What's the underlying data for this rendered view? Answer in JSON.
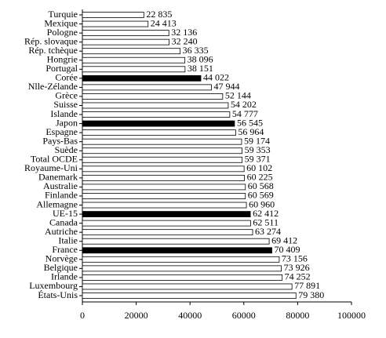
{
  "chart_data": {
    "type": "barh",
    "categories": [
      "Turquie",
      "Mexique",
      "Pologne",
      "Rép. slovaque",
      "Rép. tchèque",
      "Hongrie",
      "Portugal",
      "Corée",
      "Nlle-Zélande",
      "Grèce",
      "Suisse",
      "Islande",
      "Japon",
      "Espagne",
      "Pays-Bas",
      "Suède",
      "Total OCDE",
      "Royaume-Uni",
      "Danemark",
      "Australie",
      "Finlande",
      "Allemagne",
      "UE-15",
      "Canada",
      "Autriche",
      "Italie",
      "France",
      "Norvège",
      "Belgique",
      "Irlande",
      "Luxembourg",
      "États-Unis"
    ],
    "values": [
      22835,
      24413,
      32136,
      32240,
      36335,
      38096,
      38151,
      44022,
      47944,
      52144,
      54202,
      54777,
      56545,
      56964,
      59174,
      59353,
      59371,
      60102,
      60225,
      60568,
      60569,
      60960,
      62412,
      62511,
      63274,
      69412,
      70409,
      73156,
      73926,
      74252,
      77891,
      79380
    ],
    "value_labels": [
      "22 835",
      "24 413",
      "32 136",
      "32 240",
      "36 335",
      "38 096",
      "38 151",
      "44 022",
      "47 944",
      "52 144",
      "54 202",
      "54 777",
      "56 545",
      "56 964",
      "59 174",
      "59 353",
      "59 371",
      "60 102",
      "60 225",
      "60 568",
      "60 569",
      "60 960",
      "62 412",
      "62 511",
      "63 274",
      "69 412",
      "70 409",
      "73 156",
      "73 926",
      "74 252",
      "77 891",
      "79 380"
    ],
    "colors": [
      "#ffffff",
      "#ffffff",
      "#ffffff",
      "#ffffff",
      "#ffffff",
      "#ffffff",
      "#ffffff",
      "#000000",
      "#ffffff",
      "#ffffff",
      "#ffffff",
      "#ffffff",
      "#000000",
      "#ffffff",
      "#ffffff",
      "#ffffff",
      "#ffffff",
      "#ffffff",
      "#ffffff",
      "#ffffff",
      "#ffffff",
      "#ffffff",
      "#000000",
      "#ffffff",
      "#ffffff",
      "#ffffff",
      "#000000",
      "#ffffff",
      "#ffffff",
      "#ffffff",
      "#ffffff",
      "#ffffff"
    ],
    "xlim": [
      0,
      100000
    ],
    "xticks": [
      0,
      20000,
      40000,
      60000,
      80000,
      100000
    ]
  }
}
